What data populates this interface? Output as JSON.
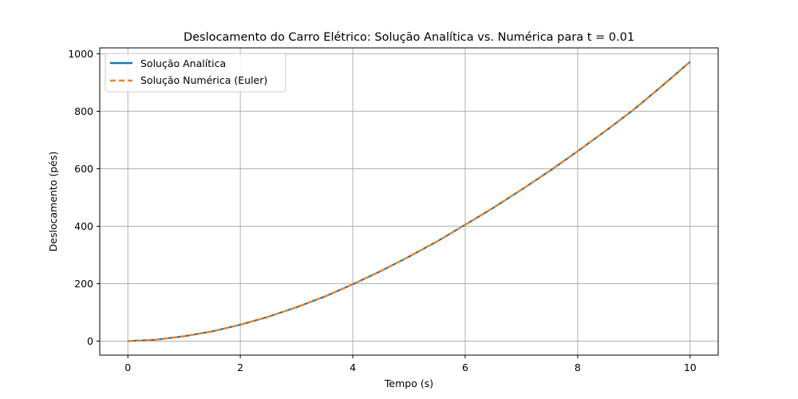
{
  "chart_data": {
    "type": "line",
    "title": "Deslocamento do Carro Elétrico: Solução Analítica vs. Numérica para t = 0.01",
    "xlabel": "Tempo (s)",
    "ylabel": "Deslocamento (pés)",
    "xlim": [
      -0.5,
      10.5
    ],
    "ylim": [
      -48.6,
      1020.6
    ],
    "xticks": [
      0,
      2,
      4,
      6,
      8,
      10
    ],
    "yticks": [
      0,
      200,
      400,
      600,
      800,
      1000
    ],
    "grid": true,
    "legend_position": "upper-left",
    "series": [
      {
        "name": "Solução Analítica",
        "color": "#1f77b4",
        "style": "solid",
        "x": [
          0,
          0.5,
          1,
          1.5,
          2,
          2.5,
          3,
          3.5,
          4,
          4.5,
          5,
          5.5,
          6,
          6.5,
          7,
          7.5,
          8,
          8.5,
          9,
          9.5,
          10
        ],
        "y": [
          0,
          5,
          17,
          34,
          57,
          85,
          118,
          155,
          198,
          244,
          294,
          347,
          405,
          464,
          527,
          592,
          661,
          732,
          806,
          888,
          972
        ]
      },
      {
        "name": "Solução Numérica (Euler)",
        "color": "#ff7f0e",
        "style": "dashed",
        "x": [
          0,
          0.5,
          1,
          1.5,
          2,
          2.5,
          3,
          3.5,
          4,
          4.5,
          5,
          5.5,
          6,
          6.5,
          7,
          7.5,
          8,
          8.5,
          9,
          9.5,
          10
        ],
        "y": [
          0,
          5,
          17,
          34,
          57,
          85,
          118,
          155,
          198,
          244,
          294,
          347,
          405,
          464,
          527,
          592,
          661,
          732,
          806,
          888,
          972
        ]
      }
    ]
  }
}
